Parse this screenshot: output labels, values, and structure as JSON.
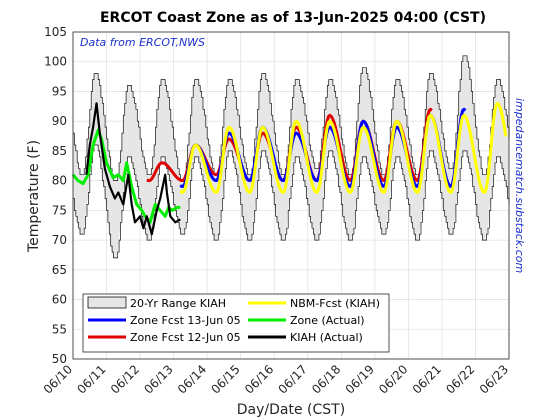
{
  "chart_data": {
    "type": "line",
    "title": "ERCOT Coast Zone as of 13-Jun-2025 04:00 (CST)",
    "xlabel": "Day/Date (CST)",
    "ylabel": "Temperature (F)",
    "ylim": [
      50,
      105
    ],
    "yticks": [
      50,
      55,
      60,
      65,
      70,
      75,
      80,
      85,
      90,
      95,
      100,
      105
    ],
    "xlim_days": [
      10,
      23
    ],
    "xtick_labels": [
      "06/10",
      "06/11",
      "06/12",
      "06/13",
      "06/14",
      "06/15",
      "06/16",
      "06/17",
      "06/18",
      "06/19",
      "06/20",
      "06/21",
      "06/22",
      "06/23"
    ],
    "grid": true,
    "legend_position": "bottom-left",
    "annotation_top": "Data from ERCOT,NWS",
    "annotation_right": "impedancematch.substack.com",
    "range_band": {
      "name": "20-Yr Range KIAH",
      "color": "#e6e6e6",
      "days": [
        10,
        23
      ],
      "high_max": [
        98,
        96,
        97,
        97,
        97,
        98,
        97,
        97,
        99,
        97,
        98,
        101,
        97,
        96
      ],
      "high_min": [
        86,
        84,
        84,
        84,
        85,
        85,
        84,
        85,
        84,
        84,
        85,
        85,
        84,
        84
      ],
      "low_max": [
        81,
        80,
        81,
        80,
        81,
        81,
        81,
        82,
        81,
        81,
        81,
        82,
        81,
        81
      ],
      "low_min": [
        71,
        67,
        70,
        71,
        70,
        70,
        70,
        70,
        70,
        71,
        70,
        71,
        70,
        70
      ]
    },
    "series": [
      {
        "name": "Zone Fcst 13-Jun 05",
        "color": "#0000ff",
        "start_day": 13.2,
        "end_day": 21.7,
        "daily_max": [
          86,
          88,
          89,
          88,
          89,
          90,
          89,
          91,
          92
        ],
        "daily_min": [
          79,
          80,
          80,
          80,
          80,
          79,
          79,
          79,
          79
        ]
      },
      {
        "name": "Zone Fcst 12-Jun 05",
        "color": "#e00000",
        "start_day": 12.2,
        "end_day": 20.7,
        "daily_max": [
          83,
          86,
          87,
          88,
          89,
          91,
          90,
          90,
          92
        ],
        "daily_min": [
          80,
          80,
          81,
          80,
          80,
          80,
          80,
          80,
          80
        ]
      },
      {
        "name": "NBM-Fcst (KIAH)",
        "color": "#ffff00",
        "start_day": 13.2,
        "end_day": 22.9,
        "daily_max": [
          86,
          89,
          89,
          90,
          90,
          89,
          90,
          91,
          91,
          93
        ],
        "daily_min": [
          78,
          78,
          78,
          78,
          78,
          78,
          78,
          78,
          78,
          78
        ]
      },
      {
        "name": "Zone (Actual)",
        "color": "#00ee00",
        "start_day": 10.0,
        "end_day": 13.2,
        "points": [
          [
            10.0,
            81
          ],
          [
            10.15,
            80
          ],
          [
            10.3,
            79.5
          ],
          [
            10.45,
            81
          ],
          [
            10.6,
            86
          ],
          [
            10.75,
            88.5
          ],
          [
            10.85,
            87
          ],
          [
            11.0,
            83
          ],
          [
            11.2,
            80.5
          ],
          [
            11.35,
            81
          ],
          [
            11.5,
            80
          ],
          [
            11.6,
            83
          ],
          [
            11.75,
            79
          ],
          [
            11.9,
            76
          ],
          [
            12.05,
            75
          ],
          [
            12.15,
            74
          ],
          [
            12.3,
            73
          ],
          [
            12.45,
            76
          ],
          [
            12.6,
            75
          ],
          [
            12.75,
            74
          ],
          [
            12.85,
            75.5
          ],
          [
            12.95,
            75
          ],
          [
            13.1,
            75.5
          ],
          [
            13.2,
            75.5
          ]
        ]
      },
      {
        "name": "KIAH (Actual)",
        "color": "#000000",
        "start_day": 10.4,
        "end_day": 13.2,
        "points": [
          [
            10.4,
            81
          ],
          [
            10.5,
            86
          ],
          [
            10.6,
            89
          ],
          [
            10.7,
            93
          ],
          [
            10.8,
            88
          ],
          [
            10.95,
            82
          ],
          [
            11.1,
            79
          ],
          [
            11.25,
            77
          ],
          [
            11.35,
            78
          ],
          [
            11.5,
            76
          ],
          [
            11.65,
            81
          ],
          [
            11.75,
            76
          ],
          [
            11.85,
            73
          ],
          [
            12.0,
            74
          ],
          [
            12.1,
            72
          ],
          [
            12.2,
            74
          ],
          [
            12.35,
            71
          ],
          [
            12.5,
            75
          ],
          [
            12.6,
            77
          ],
          [
            12.75,
            81
          ],
          [
            12.8,
            78
          ],
          [
            12.9,
            74
          ],
          [
            13.05,
            73
          ],
          [
            13.2,
            73.5
          ]
        ]
      }
    ]
  }
}
